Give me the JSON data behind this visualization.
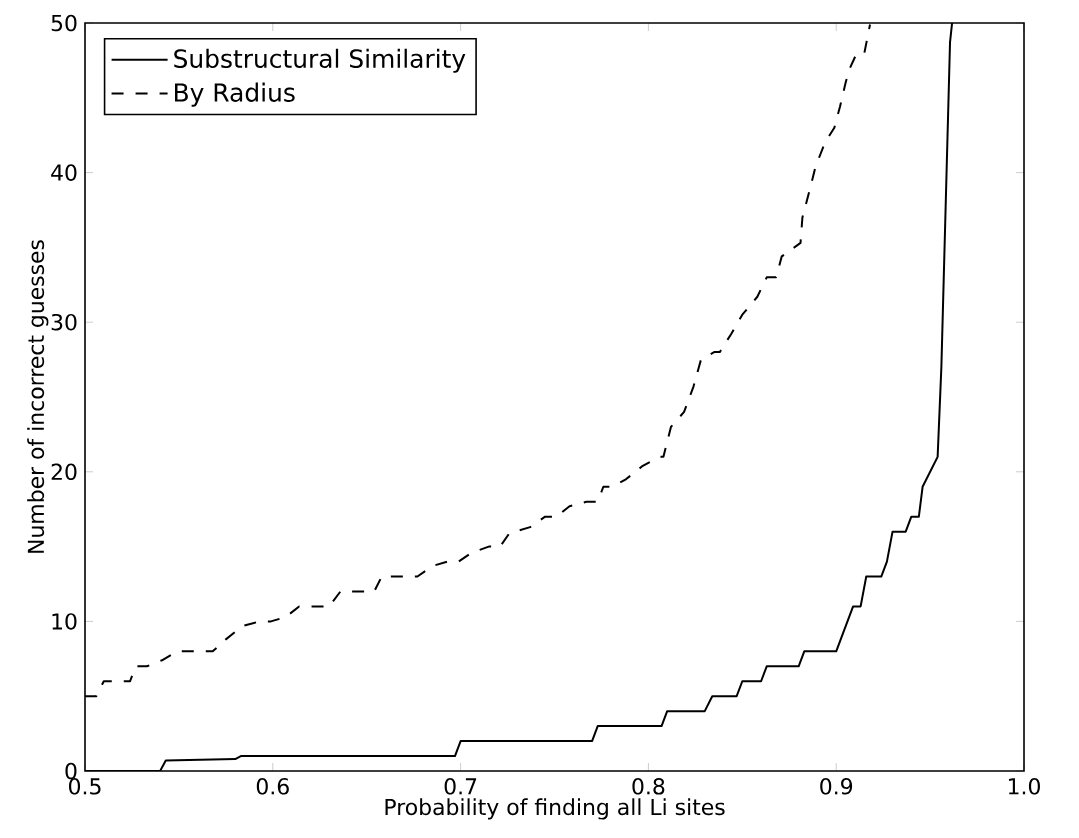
{
  "chart_data": {
    "type": "line",
    "xlabel": "Probability of finding all Li sites",
    "ylabel": "Number of incorrect guesses",
    "xlim": [
      0.5,
      1.0
    ],
    "ylim": [
      0,
      50
    ],
    "xticks": [
      0.5,
      0.6,
      0.7,
      0.8,
      0.9,
      {
        "value": 1.0,
        "label": "1.0"
      }
    ],
    "yticks": [
      0,
      10,
      20,
      30,
      40,
      50
    ],
    "grid": false,
    "legend": "top left",
    "marker": "none",
    "series": [
      {
        "name": "Substructural Similarity",
        "color": "#000000",
        "line_style": "solid",
        "x": [
          0.5,
          0.54,
          0.543,
          0.58,
          0.583,
          0.697,
          0.7,
          0.77,
          0.773,
          0.807,
          0.81,
          0.83,
          0.834,
          0.847,
          0.85,
          0.86,
          0.863,
          0.88,
          0.883,
          0.9,
          0.909,
          0.913,
          0.916,
          0.924,
          0.927,
          0.93,
          0.937,
          0.94,
          0.944,
          0.946,
          0.954,
          0.956,
          0.9606,
          0.9617
        ],
        "values": [
          0,
          0,
          0.7,
          0.8,
          1,
          1,
          2,
          2,
          3,
          3,
          4,
          4,
          5,
          5,
          6,
          6,
          7,
          7,
          8,
          8,
          11,
          11,
          13,
          13,
          14,
          16,
          16,
          17,
          17,
          19,
          21,
          27,
          48.7,
          50
        ]
      },
      {
        "name": "By Radius",
        "color": "#000000",
        "line_style": "dashed",
        "x": [
          0.5,
          0.506,
          0.51,
          0.519,
          0.524,
          0.527,
          0.533,
          0.541,
          0.549,
          0.568,
          0.575,
          0.584,
          0.593,
          0.599,
          0.607,
          0.614,
          0.63,
          0.636,
          0.654,
          0.658,
          0.677,
          0.685,
          0.693,
          0.699,
          0.706,
          0.715,
          0.721,
          0.726,
          0.737,
          0.745,
          0.751,
          0.758,
          0.767,
          0.773,
          0.776,
          0.781,
          0.788,
          0.797,
          0.806,
          0.808,
          0.812,
          0.819,
          0.824,
          0.828,
          0.835,
          0.838,
          0.844,
          0.85,
          0.858,
          0.863,
          0.868,
          0.871,
          0.881,
          0.882,
          0.886,
          0.889,
          0.894,
          0.899,
          0.902,
          0.905,
          0.907,
          0.911,
          0.915,
          0.918
        ],
        "values": [
          5,
          5,
          6,
          6,
          6,
          7,
          7,
          7.4,
          8,
          8,
          8.8,
          9.7,
          10,
          10,
          10.3,
          11,
          11,
          12,
          12,
          13,
          13,
          13.7,
          14,
          14,
          14.6,
          15,
          15,
          15.9,
          16.3,
          17,
          17,
          17.7,
          18,
          18,
          19,
          19,
          19.5,
          20.4,
          21,
          21,
          23,
          24,
          25.7,
          27.5,
          28,
          28,
          29.2,
          30.5,
          31.7,
          33,
          33,
          34.4,
          35.3,
          37,
          38.9,
          40.4,
          42,
          43,
          44.4,
          46,
          46.9,
          48,
          48,
          49.9
        ]
      }
    ]
  }
}
